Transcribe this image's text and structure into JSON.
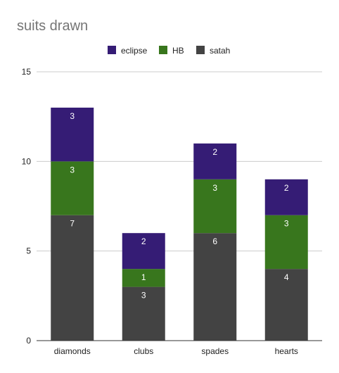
{
  "chart_data": {
    "type": "bar",
    "stacked": true,
    "title": "suits drawn",
    "xlabel": "",
    "ylabel": "",
    "categories": [
      "diamonds",
      "clubs",
      "spades",
      "hearts"
    ],
    "series": [
      {
        "name": "satah",
        "color": "#434343",
        "values": [
          7,
          3,
          6,
          4
        ]
      },
      {
        "name": "HB",
        "color": "#38761d",
        "values": [
          3,
          1,
          3,
          3
        ]
      },
      {
        "name": "eclipse",
        "color": "#351c75",
        "values": [
          3,
          2,
          2,
          2
        ]
      }
    ],
    "legend_order": [
      "eclipse",
      "HB",
      "satah"
    ],
    "legend_position": "top",
    "ylim": [
      0,
      15
    ],
    "yticks": [
      0,
      5,
      10,
      15
    ],
    "grid": true,
    "data_labels": true
  }
}
